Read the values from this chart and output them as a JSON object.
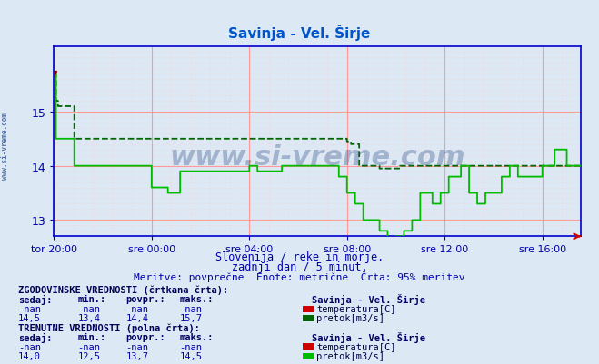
{
  "title": "Savinja - Vel. Širje",
  "title_color": "#0055cc",
  "bg_color": "#dce9f5",
  "plot_bg_color": "#dce9f5",
  "axis_color": "#0000cc",
  "tick_color": "#0000aa",
  "grid_major_color": "#ff9999",
  "grid_minor_color": "#ffcccc",
  "ylim": [
    12.7,
    16.2
  ],
  "yticks": [
    13,
    14,
    15
  ],
  "xlim": [
    0,
    1295
  ],
  "xtick_positions": [
    0,
    240,
    480,
    720,
    960,
    1200
  ],
  "xtick_labels": [
    "tor 20:00",
    "sre 00:00",
    "sre 04:00",
    "sre 08:00",
    "sre 12:00",
    "sre 16:00"
  ],
  "subtitle1": "Slovenija / reke in morje.",
  "subtitle2": "zadnji dan / 5 minut.",
  "subtitle3": "Meritve: povprečne  Enote: metrične  Črta: 95% meritev",
  "subtitle_color": "#0000aa",
  "watermark": "www.si-vreme.com",
  "watermark_color": "#1a3a7a",
  "watermark_alpha": 0.3,
  "hist_label": "ZGODOVINSKE VREDNOSTI (črtkana črta):",
  "curr_label": "TRENUTNE VREDNOSTI (polna črta):",
  "col_headers": [
    "sedaj:",
    "min.:",
    "povpr.:",
    "maks.:"
  ],
  "hist_temp_vals": [
    "-nan",
    "-nan",
    "-nan",
    "-nan"
  ],
  "hist_pretok_vals": [
    "14,5",
    "13,4",
    "14,4",
    "15,7"
  ],
  "curr_temp_vals": [
    "-nan",
    "-nan",
    "-nan",
    "-nan"
  ],
  "curr_pretok_vals": [
    "14,0",
    "12,5",
    "13,7",
    "14,5"
  ],
  "station_label": "Savinja - Vel. Širje",
  "temp_label": "temperatura[C]",
  "pretok_label": "pretok[m3/s]",
  "temp_color": "#cc0000",
  "pretok_hist_color": "#006600",
  "pretok_curr_color": "#00bb00",
  "line_width": 1.3,
  "left_margin_color": "#b0c8e8",
  "arrow_color": "#880000"
}
